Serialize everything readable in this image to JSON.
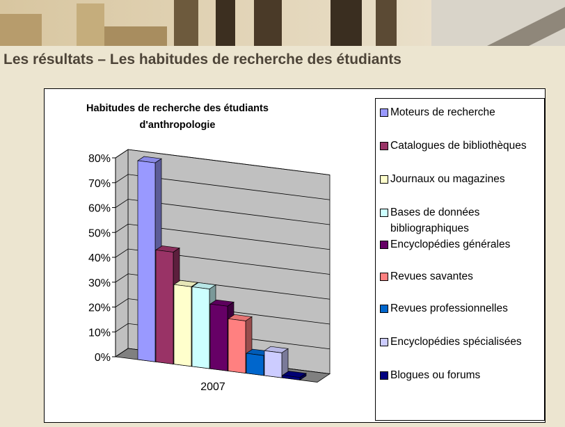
{
  "header": {
    "title": "Les résultats – Les habitudes de recherche des étudiants"
  },
  "chart_data": {
    "type": "bar3d",
    "title": "Habitudes de recherche des étudiants d'anthropologie",
    "categories": [
      "2007"
    ],
    "series": [
      {
        "name": "Moteurs de recherche",
        "color": "#9999ff",
        "values": [
          80
        ]
      },
      {
        "name": "Catalogues de bibliothèques",
        "color": "#993366",
        "values": [
          45
        ]
      },
      {
        "name": "Journaux ou magazines",
        "color": "#ffffcc",
        "values": [
          32
        ]
      },
      {
        "name": "Bases de données bibliographiques",
        "color": "#ccffff",
        "values": [
          32
        ]
      },
      {
        "name": "Encyclopédies générales",
        "color": "#660066",
        "values": [
          26
        ]
      },
      {
        "name": "Revues savantes",
        "color": "#ff8080",
        "values": [
          21
        ]
      },
      {
        "name": "Revues professionnelles",
        "color": "#0066cc",
        "values": [
          8
        ]
      },
      {
        "name": "Encyclopédies spécialisées",
        "color": "#ccccff",
        "values": [
          10
        ]
      },
      {
        "name": "Blogues ou forums",
        "color": "#000080",
        "values": [
          1
        ]
      }
    ],
    "ylim": [
      0,
      80
    ],
    "yticks": [
      {
        "value": 0,
        "label": "0%"
      },
      {
        "value": 10,
        "label": "10%"
      },
      {
        "value": 20,
        "label": "20%"
      },
      {
        "value": 30,
        "label": "30%"
      },
      {
        "value": 40,
        "label": "40%"
      },
      {
        "value": 50,
        "label": "50%"
      },
      {
        "value": 60,
        "label": "60%"
      },
      {
        "value": 70,
        "label": "70%"
      },
      {
        "value": 80,
        "label": "80%"
      }
    ],
    "grid": true
  }
}
